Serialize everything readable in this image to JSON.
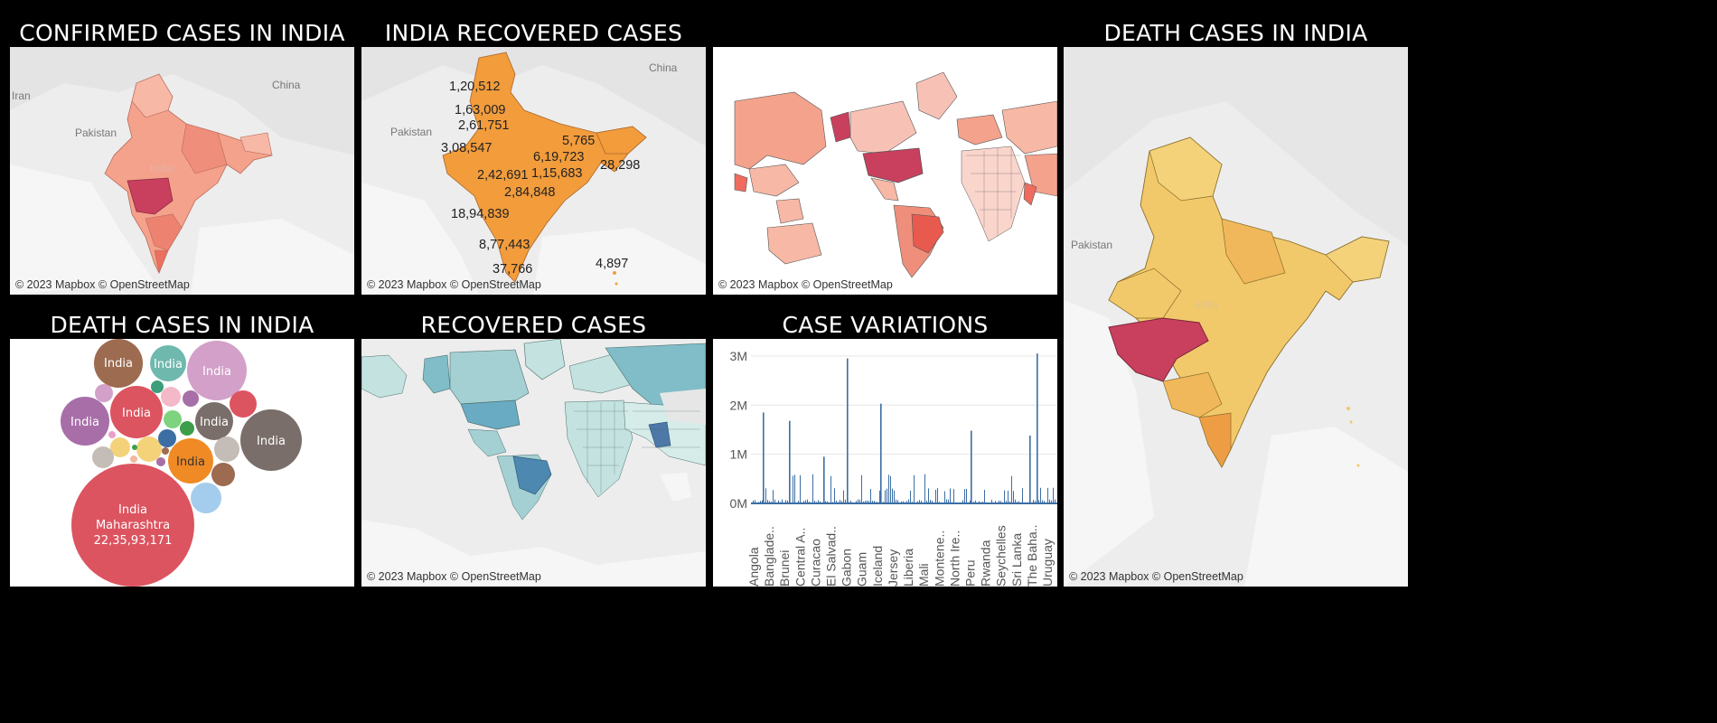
{
  "titles": {
    "confirmed": "CONFIRMED CASES IN INDIA",
    "india_recovered": "INDIA RECOVERED CASES",
    "death_right": "DEATH CASES IN INDIA",
    "death_bubbles": "DEATH CASES IN INDIA",
    "recovered": "RECOVERED CASES",
    "case_variations": "CASE VARIATIONS"
  },
  "attribution": "© 2023 Mapbox © OpenStreetMap",
  "map_labels": {
    "iran": "Iran",
    "pakistan": "Pakistan",
    "china": "China",
    "india": "India"
  },
  "recovered_labels": [
    "1,20,512",
    "1,63,009",
    "2,61,751",
    "3,08,547",
    "5,765",
    "6,19,723",
    "28,298",
    "2,42,691",
    "1,15,683",
    "2,84,848",
    "18,94,839",
    "8,77,443",
    "37,766",
    "4,897"
  ],
  "bubbles": {
    "big_label_1": "India",
    "big_label_2": "Maharashtra",
    "big_label_3": "22,35,93,171",
    "small_label": "India"
  },
  "colors": {
    "accent_red": "#dc5460",
    "map_salmon": "#f4a28c",
    "map_orange": "#f29c3c",
    "map_yellow": "#f2c96a",
    "map_teal": "#a4d0d3",
    "bar_blue": "#3c6ea4"
  },
  "chart_data": {
    "type": "bar",
    "y_ticks": [
      "3M",
      "2M",
      "1M",
      "0M"
    ],
    "ylim": [
      0,
      3200000
    ],
    "categories": [
      "Angola",
      "Banglade..",
      "Brunei",
      "Central A..",
      "Curacao",
      "El Salvad..",
      "Gabon",
      "Guam",
      "Iceland",
      "Jersey",
      "Liberia",
      "Mali",
      "Montene..",
      "North Ire..",
      "Peru",
      "Rwanda",
      "Seychelles",
      "Sri Lanka",
      "The Baha..",
      "Uruguay"
    ],
    "peaks": [
      1850000,
      1680000,
      950000,
      2950000,
      2030000,
      1480000,
      1380000,
      3050000
    ]
  }
}
